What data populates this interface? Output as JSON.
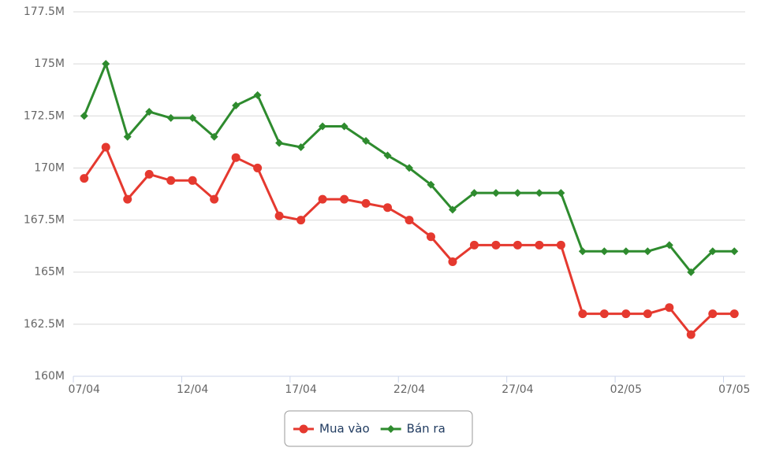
{
  "chart_data": {
    "type": "line",
    "categories": [
      "07/04",
      null,
      null,
      null,
      null,
      "12/04",
      null,
      null,
      null,
      null,
      "17/04",
      null,
      null,
      null,
      null,
      "22/04",
      null,
      null,
      null,
      null,
      "27/04",
      null,
      null,
      null,
      null,
      "02/05",
      null,
      null,
      null,
      null,
      "07/05"
    ],
    "series": [
      {
        "name": "Mua vào",
        "color": "#e5392f",
        "marker": "circle",
        "values": [
          169.5,
          171,
          168.5,
          169.7,
          169.4,
          169.4,
          168.5,
          170.5,
          170,
          167.7,
          167.5,
          168.5,
          168.5,
          168.3,
          168.1,
          167.5,
          166.7,
          165.5,
          166.3,
          166.3,
          166.3,
          166.3,
          166.3,
          163,
          163,
          163,
          163,
          163.3,
          162,
          163,
          163
        ]
      },
      {
        "name": "Bán ra",
        "color": "#2e8b2e",
        "marker": "diamond",
        "values": [
          172.5,
          175,
          171.5,
          172.7,
          172.4,
          172.4,
          171.5,
          173,
          173.5,
          171.2,
          171,
          172,
          172,
          171.3,
          170.6,
          170,
          169.2,
          168,
          168.8,
          168.8,
          168.8,
          168.8,
          168.8,
          166,
          166,
          166,
          166,
          166.3,
          165,
          166,
          166
        ]
      }
    ],
    "ylim": [
      160,
      177.5
    ],
    "yticks": [
      {
        "value": 160,
        "label": "160M"
      },
      {
        "value": 162.5,
        "label": "162.5M"
      },
      {
        "value": 165,
        "label": "165M"
      },
      {
        "value": 167.5,
        "label": "167.5M"
      },
      {
        "value": 170,
        "label": "170M"
      },
      {
        "value": 172.5,
        "label": "172.5M"
      },
      {
        "value": 175,
        "label": "175M"
      },
      {
        "value": 177.5,
        "label": "177.5M"
      }
    ],
    "grid": true,
    "legend": "bottom"
  }
}
